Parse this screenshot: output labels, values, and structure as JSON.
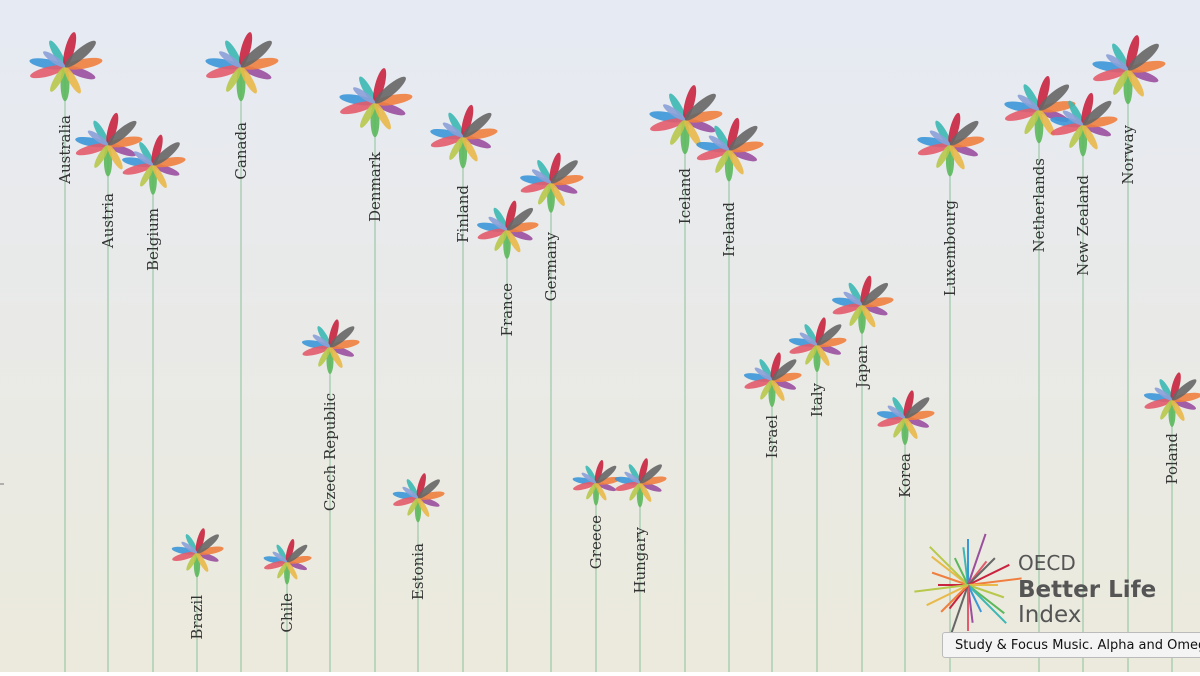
{
  "countries": [
    "Australia",
    "Austria",
    "Belgium",
    "Canada",
    "Denmark",
    "Finland",
    "France",
    "Germany",
    "Czech Republic",
    "Brazil",
    "Chile",
    "Estonia",
    "Greece",
    "Hungary",
    "Iceland",
    "Ireland",
    "Israel",
    "Italy",
    "Japan",
    "Korea",
    "Luxembourg",
    "Netherlands",
    "New Zealand",
    "Norway",
    "Poland"
  ],
  "logo": {
    "org": "OECD",
    "title": "Better Life",
    "subtitle": "Index"
  },
  "tooltip": "Study & Focus Music. Alpha and Omeg"
}
